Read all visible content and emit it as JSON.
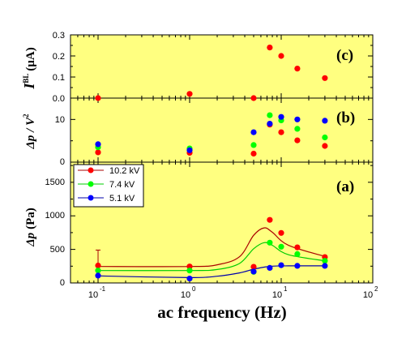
{
  "colors": {
    "background": "#ffff80",
    "series_10_2": "#ff0000",
    "series_7_4": "#00ff00",
    "series_5_1": "#0000ff",
    "fit_10_2": "#aa0000",
    "fit_7_4": "#00cc00",
    "fit_5_1": "#0000aa"
  },
  "chart_data": [
    {
      "panel": "c",
      "type": "scatter",
      "panel_label": "(c)",
      "ylabel_main": "I",
      "ylabel_sup": "BL",
      "ylabel_unit": "(μA)",
      "x_scale": "log",
      "xlim": [
        0.05,
        100
      ],
      "ylim": [
        0,
        0.3
      ],
      "yticks": [
        "0.0",
        "0.1",
        "0.2",
        "0.3"
      ],
      "series": [
        {
          "color": "#ff0000",
          "x": [
            0.1,
            1,
            5,
            7.5,
            10,
            15,
            30
          ],
          "y": [
            0.0,
            0.02,
            0.0,
            0.24,
            0.2,
            0.14,
            0.095
          ]
        }
      ]
    },
    {
      "panel": "b",
      "type": "scatter",
      "panel_label": "(b)",
      "ylabel_main": "Δp / V",
      "ylabel_sup": "2",
      "x_scale": "log",
      "xlim": [
        0.05,
        100
      ],
      "ylim": [
        0,
        15
      ],
      "yticks": [
        "0",
        "10"
      ],
      "series": [
        {
          "color": "#ff0000",
          "x": [
            0.1,
            1,
            5,
            7.5,
            10,
            15,
            30
          ],
          "y": [
            2.3,
            2.2,
            2.0,
            8.8,
            7.0,
            5.1,
            3.8
          ]
        },
        {
          "color": "#00ff00",
          "x": [
            0.1,
            1,
            5,
            7.5,
            10,
            15,
            30
          ],
          "y": [
            3.5,
            3.2,
            4.0,
            11.0,
            9.8,
            7.8,
            5.8
          ]
        },
        {
          "color": "#0000ff",
          "x": [
            0.1,
            1,
            5,
            7.5,
            10,
            15,
            30
          ],
          "y": [
            4.2,
            2.8,
            7.0,
            9.0,
            10.6,
            10.0,
            9.7
          ]
        }
      ]
    },
    {
      "panel": "a",
      "type": "line",
      "panel_label": "(a)",
      "ylabel_main": "Δp",
      "ylabel_unit": "(Pa)",
      "xlabel": "ac frequency (Hz)",
      "x_scale": "log",
      "xlim": [
        0.05,
        100
      ],
      "ylim": [
        0,
        1800
      ],
      "yticks": [
        "0",
        "500",
        "1000",
        "1500"
      ],
      "xticks": [
        "10",
        "10",
        "10",
        "10"
      ],
      "xtick_exponents": [
        "-1",
        "0",
        "1",
        "2"
      ],
      "legend": [
        "10.2 kV",
        "7.4 kV",
        "5.1 kV"
      ],
      "legend_position": "top-left",
      "series": [
        {
          "name": "10.2 kV",
          "color": "#ff0000",
          "x": [
            0.1,
            1,
            5,
            7.5,
            10,
            15,
            30
          ],
          "y": [
            260,
            245,
            240,
            940,
            745,
            530,
            385
          ],
          "fit_y": [
            245,
            245,
            270,
            390,
            710,
            820,
            755,
            560,
            395
          ]
        },
        {
          "name": "7.4 kV",
          "color": "#00ff00",
          "x": [
            0.1,
            1,
            5,
            7.5,
            10,
            15,
            30
          ],
          "y": [
            185,
            185,
            165,
            600,
            540,
            430,
            330
          ],
          "fit_y": [
            185,
            185,
            200,
            290,
            510,
            600,
            560,
            420,
            330
          ]
        },
        {
          "name": "5.1 kV",
          "color": "#0000ff",
          "x": [
            0.1,
            1,
            5,
            7.5,
            10,
            15,
            30
          ],
          "y": [
            110,
            65,
            170,
            225,
            265,
            255,
            255
          ],
          "fit_y": [
            105,
            80,
            100,
            150,
            205,
            235,
            250,
            255,
            255
          ]
        }
      ],
      "fit_x": [
        0.1,
        1,
        2,
        3.5,
        5,
        6.5,
        8,
        12,
        30
      ],
      "error_bar": {
        "x": 0.1,
        "y": 260,
        "upper": 490
      }
    }
  ]
}
